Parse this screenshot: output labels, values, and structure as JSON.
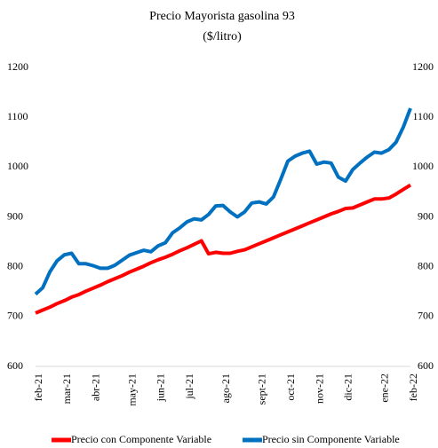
{
  "chart_data": {
    "type": "line",
    "title": "Precio Mayorista gasolina 93",
    "subtitle": "($/litro)",
    "categories": [
      "feb-21",
      null,
      null,
      null,
      "mar-21",
      null,
      null,
      null,
      "abr-21",
      null,
      null,
      null,
      null,
      "may-21",
      null,
      null,
      null,
      "jun-21",
      null,
      null,
      null,
      "jul-21",
      null,
      null,
      null,
      null,
      "ago-21",
      null,
      null,
      null,
      null,
      "sept-21",
      null,
      null,
      null,
      "oct-21",
      null,
      null,
      null,
      "nov-21",
      null,
      null,
      null,
      "dic-21",
      null,
      null,
      null,
      null,
      "ene-22",
      null,
      null,
      null,
      "feb-22"
    ],
    "series": [
      {
        "name": "Precio con Componente Variable",
        "color": "#ff0000",
        "values": [
          707,
          713,
          719,
          726,
          732,
          739,
          744,
          751,
          757,
          763,
          770,
          776,
          782,
          789,
          795,
          801,
          808,
          814,
          819,
          825,
          832,
          838,
          845,
          852,
          826,
          829,
          827,
          827,
          831,
          834,
          840,
          846,
          852,
          858,
          864,
          870,
          876,
          882,
          888,
          894,
          900,
          906,
          911,
          917,
          918,
          924,
          930,
          936,
          936,
          938,
          946,
          955,
          964
        ]
      },
      {
        "name": "Precio sin Componente Variable",
        "color": "#0070c0",
        "values": [
          745,
          758,
          790,
          812,
          824,
          827,
          806,
          806,
          802,
          797,
          797,
          803,
          813,
          823,
          828,
          833,
          830,
          842,
          848,
          868,
          878,
          890,
          896,
          894,
          905,
          922,
          923,
          910,
          900,
          910,
          928,
          930,
          926,
          940,
          975,
          1012,
          1022,
          1028,
          1032,
          1006,
          1010,
          1008,
          980,
          972,
          995,
          1008,
          1020,
          1030,
          1028,
          1035,
          1050,
          1080,
          1118
        ]
      }
    ],
    "ylim": [
      600,
      1200
    ],
    "yticks": [
      600,
      700,
      800,
      900,
      1000,
      1100,
      1200
    ],
    "y2lim": [
      600,
      1200
    ],
    "y2ticks": [
      600,
      700,
      800,
      900,
      1000,
      1100,
      1200
    ],
    "grid": false,
    "legend": "bottom"
  }
}
